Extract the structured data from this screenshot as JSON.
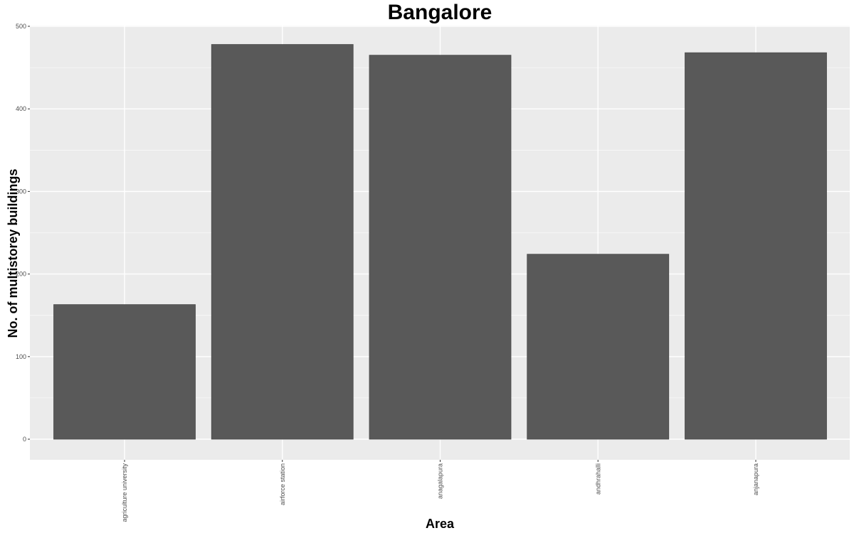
{
  "chart_data": {
    "type": "bar",
    "title": "Bangalore",
    "xlabel": "Area",
    "ylabel": "No. of multistorey buildings",
    "categories": [
      "agriculture university",
      "airforce station",
      "anagalapura",
      "andhrahalli",
      "anjanapura"
    ],
    "values": [
      163,
      478,
      465,
      224,
      468
    ],
    "ylim": [
      0,
      500
    ],
    "yticks": [
      0,
      100,
      200,
      300,
      400,
      500
    ],
    "grid": true,
    "colors": {
      "panel": "#ebebeb",
      "grid_major": "#ffffff",
      "bar_fill": "#595959",
      "bar_outline": "#4a4a4a",
      "tick": "#333333"
    }
  }
}
